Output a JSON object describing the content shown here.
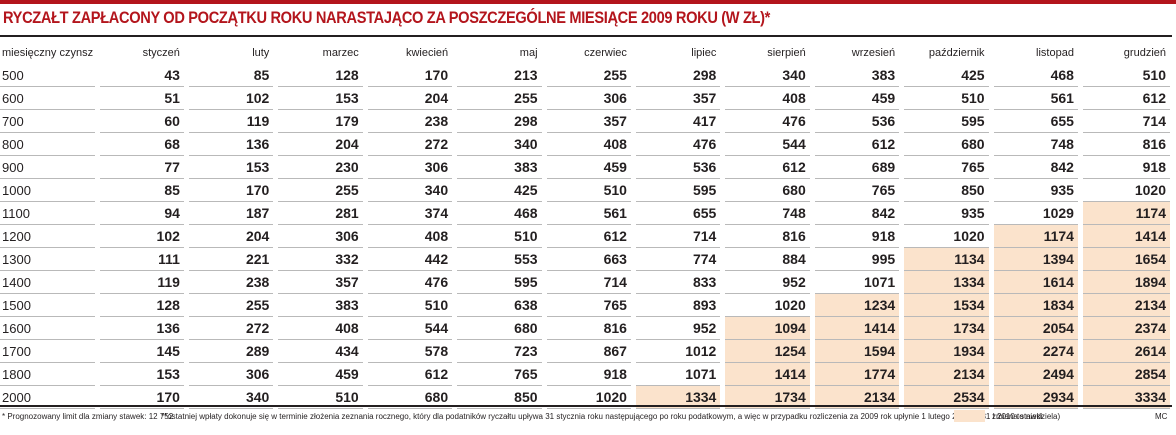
{
  "title": "RYCZAŁT ZAPŁACONY OD POCZĄTKU ROKU NARASTAJĄCO ZA POSZCZEGÓLNE MIESIĄCE 2009 ROKU (W ZŁ)*",
  "colors": {
    "accent": "#b3151c",
    "highlight": "#fbe3cc",
    "rule": "#231f20"
  },
  "table": {
    "columns": [
      "miesięczny czynsz",
      "styczeń",
      "luty",
      "marzec",
      "kwiecień",
      "maj",
      "czerwiec",
      "lipiec",
      "sierpień",
      "wrzesień",
      "październik",
      "listopad",
      "grudzień"
    ],
    "rows": [
      {
        "cells": [
          "500",
          "43",
          "85",
          "128",
          "170",
          "213",
          "255",
          "298",
          "340",
          "383",
          "425",
          "468",
          "510"
        ],
        "highlight_from": null
      },
      {
        "cells": [
          "600",
          "51",
          "102",
          "153",
          "204",
          "255",
          "306",
          "357",
          "408",
          "459",
          "510",
          "561",
          "612"
        ],
        "highlight_from": null
      },
      {
        "cells": [
          "700",
          "60",
          "119",
          "179",
          "238",
          "298",
          "357",
          "417",
          "476",
          "536",
          "595",
          "655",
          "714"
        ],
        "highlight_from": null
      },
      {
        "cells": [
          "800",
          "68",
          "136",
          "204",
          "272",
          "340",
          "408",
          "476",
          "544",
          "612",
          "680",
          "748",
          "816"
        ],
        "highlight_from": null
      },
      {
        "cells": [
          "900",
          "77",
          "153",
          "230",
          "306",
          "383",
          "459",
          "536",
          "612",
          "689",
          "765",
          "842",
          "918"
        ],
        "highlight_from": null
      },
      {
        "cells": [
          "1000",
          "85",
          "170",
          "255",
          "340",
          "425",
          "510",
          "595",
          "680",
          "765",
          "850",
          "935",
          "1020"
        ],
        "highlight_from": null
      },
      {
        "cells": [
          "1100",
          "94",
          "187",
          "281",
          "374",
          "468",
          "561",
          "655",
          "748",
          "842",
          "935",
          "1029",
          "1174"
        ],
        "highlight_from": 12
      },
      {
        "cells": [
          "1200",
          "102",
          "204",
          "306",
          "408",
          "510",
          "612",
          "714",
          "816",
          "918",
          "1020",
          "1174",
          "1414"
        ],
        "highlight_from": 11
      },
      {
        "cells": [
          "1300",
          "111",
          "221",
          "332",
          "442",
          "553",
          "663",
          "774",
          "884",
          "995",
          "1134",
          "1394",
          "1654"
        ],
        "highlight_from": 10
      },
      {
        "cells": [
          "1400",
          "119",
          "238",
          "357",
          "476",
          "595",
          "714",
          "833",
          "952",
          "1071",
          "1334",
          "1614",
          "1894"
        ],
        "highlight_from": 10
      },
      {
        "cells": [
          "1500",
          "128",
          "255",
          "383",
          "510",
          "638",
          "765",
          "893",
          "1020",
          "1234",
          "1534",
          "1834",
          "2134"
        ],
        "highlight_from": 9
      },
      {
        "cells": [
          "1600",
          "136",
          "272",
          "408",
          "544",
          "680",
          "816",
          "952",
          "1094",
          "1414",
          "1734",
          "2054",
          "2374"
        ],
        "highlight_from": 8
      },
      {
        "cells": [
          "1700",
          "145",
          "289",
          "434",
          "578",
          "723",
          "867",
          "1012",
          "1254",
          "1594",
          "1934",
          "2274",
          "2614"
        ],
        "highlight_from": 8
      },
      {
        "cells": [
          "1800",
          "153",
          "306",
          "459",
          "612",
          "765",
          "918",
          "1071",
          "1414",
          "1774",
          "2134",
          "2494",
          "2854"
        ],
        "highlight_from": 8
      },
      {
        "cells": [
          "2000",
          "170",
          "340",
          "510",
          "680",
          "850",
          "1020",
          "1334",
          "1734",
          "2134",
          "2534",
          "2934",
          "3334"
        ],
        "highlight_from": 7
      }
    ]
  },
  "footer": {
    "note1": "* Prognozowany limit dla zmiany stawek: 12 752",
    "note2": "**ostatniej wpłaty dokonuje się w terminie złożenia zeznania rocznego, który dla podatników ryczałtu upływa 31 stycznia roku następującego po roku podatkowym, a więc w przypadku rozliczenia za 2009 rok upłynie 1 lutego 2010 r. (31 I 2010 to niedziela)",
    "legend_label": "zmiana stawki",
    "credit": "MC"
  }
}
